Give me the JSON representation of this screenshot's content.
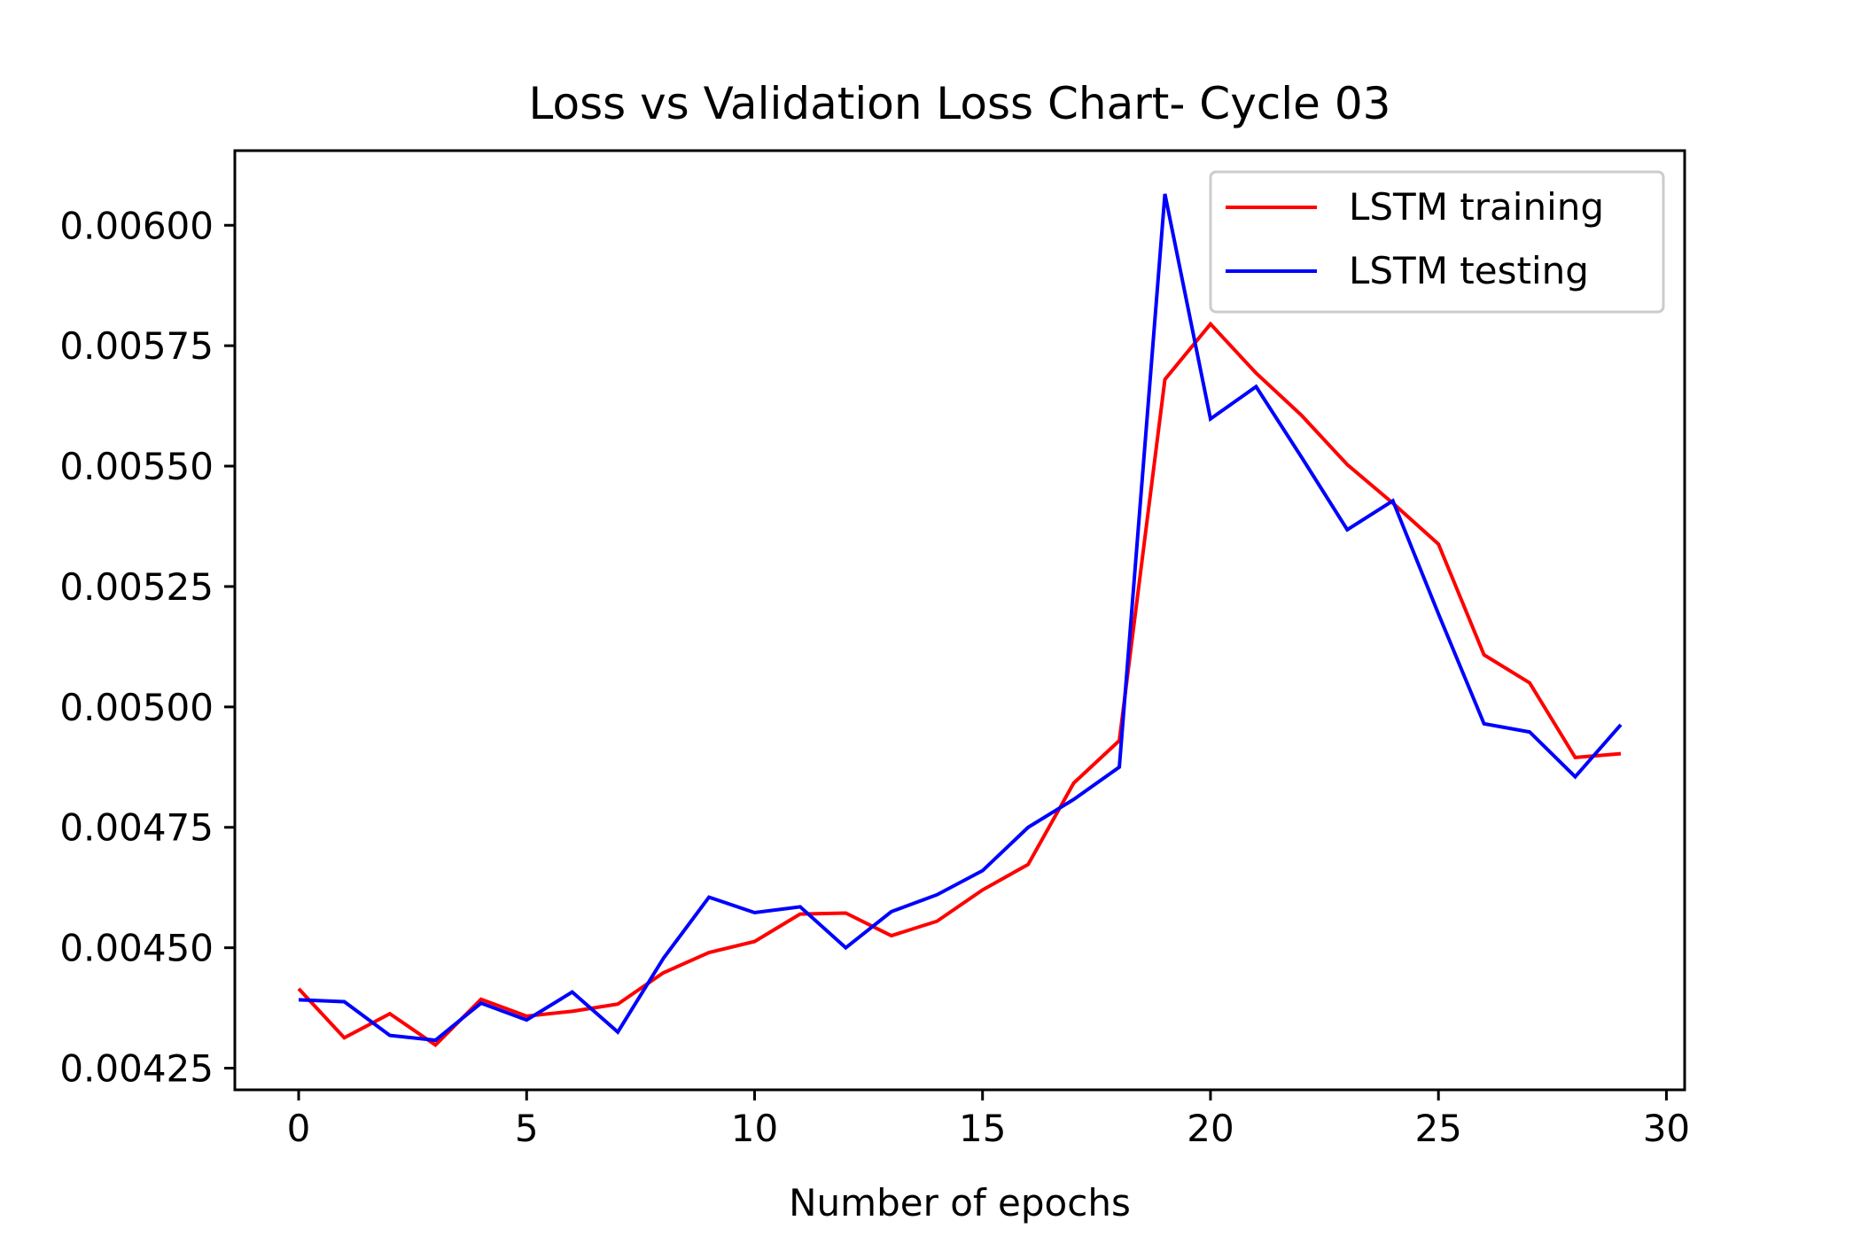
{
  "chart_data": {
    "type": "line",
    "title": "Loss vs Validation Loss Chart- Cycle 03",
    "xlabel": "Number of epochs",
    "ylabel": "",
    "xlim": [
      -1.4,
      30.4
    ],
    "ylim": [
      0.004205,
      0.006155
    ],
    "xticks": [
      0,
      5,
      10,
      15,
      20,
      25,
      30
    ],
    "xtick_labels": [
      "0",
      "5",
      "10",
      "15",
      "20",
      "25",
      "30"
    ],
    "yticks": [
      0.00425,
      0.0045,
      0.00475,
      0.005,
      0.00525,
      0.0055,
      0.00575,
      0.006
    ],
    "ytick_labels": [
      "0.00425",
      "0.00450",
      "0.00475",
      "0.00500",
      "0.00525",
      "0.00550",
      "0.00575",
      "0.00600"
    ],
    "grid": false,
    "legend_position": "top-right",
    "x": [
      0,
      1,
      2,
      3,
      4,
      5,
      6,
      7,
      8,
      9,
      10,
      11,
      12,
      13,
      14,
      15,
      16,
      17,
      18,
      19,
      20,
      21,
      22,
      23,
      24,
      25,
      26,
      27,
      28,
      29
    ],
    "series": [
      {
        "name": "LSTM training",
        "color": "#ff0000",
        "values": [
          0.004415,
          0.004313,
          0.004363,
          0.004298,
          0.004393,
          0.004358,
          0.004368,
          0.004383,
          0.004448,
          0.00449,
          0.004513,
          0.00457,
          0.004572,
          0.004525,
          0.004555,
          0.00462,
          0.004673,
          0.004842,
          0.00493,
          0.00568,
          0.005795,
          0.005693,
          0.005605,
          0.005503,
          0.005423,
          0.005338,
          0.005108,
          0.00505,
          0.004895,
          0.004903
        ]
      },
      {
        "name": "LSTM testing",
        "color": "#0000ff",
        "values": [
          0.004392,
          0.004388,
          0.004318,
          0.004308,
          0.004385,
          0.00435,
          0.004408,
          0.004325,
          0.004478,
          0.004605,
          0.004573,
          0.004585,
          0.0045,
          0.004575,
          0.00461,
          0.00466,
          0.00475,
          0.004808,
          0.004875,
          0.006065,
          0.005598,
          0.005665,
          0.005518,
          0.005368,
          0.005428,
          0.005193,
          0.004965,
          0.004948,
          0.004855,
          0.004963
        ]
      }
    ]
  }
}
